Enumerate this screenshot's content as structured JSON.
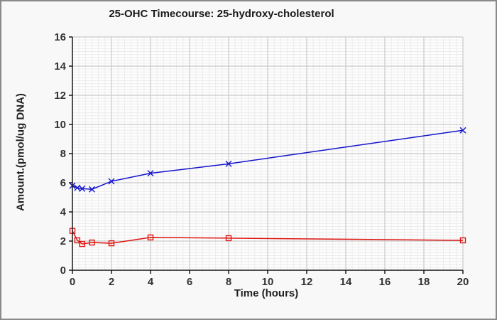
{
  "chart_data": {
    "type": "line",
    "title": "25-OHC Timecourse: 25-hydroxy-cholesterol",
    "xlabel": "Time (hours)",
    "ylabel": "Amount.(pmol/ug DNA)",
    "xlim": [
      0,
      20
    ],
    "ylim": [
      0,
      16
    ],
    "xticks": [
      0,
      2,
      4,
      6,
      8,
      10,
      12,
      14,
      16,
      18,
      20
    ],
    "yticks": [
      0,
      2,
      4,
      6,
      8,
      10,
      12,
      14,
      16
    ],
    "grid": {
      "major": true,
      "minor": true,
      "x_minor_divisions": 6,
      "y_minor_divisions": 10
    },
    "legend": "none",
    "x": [
      0,
      0.25,
      0.5,
      1,
      2,
      4,
      8,
      20
    ],
    "series": [
      {
        "marker": "x",
        "color": "#1414cc",
        "values": [
          5.8,
          5.65,
          5.6,
          5.55,
          6.1,
          6.65,
          7.3,
          9.6
        ]
      },
      {
        "marker": "square",
        "color": "#dd1410",
        "values": [
          2.7,
          2.05,
          1.8,
          1.9,
          1.85,
          2.25,
          2.2,
          2.05
        ]
      }
    ]
  },
  "colors": {
    "figure_bg": "#f8f8f8",
    "plot_bg": "#fdfdfd",
    "grid_major": "#c9c9c9",
    "grid_minor": "#ececec",
    "axis": "#1a1a1a",
    "tick_text": "#333333",
    "frame_border": "#8a8a8a"
  }
}
